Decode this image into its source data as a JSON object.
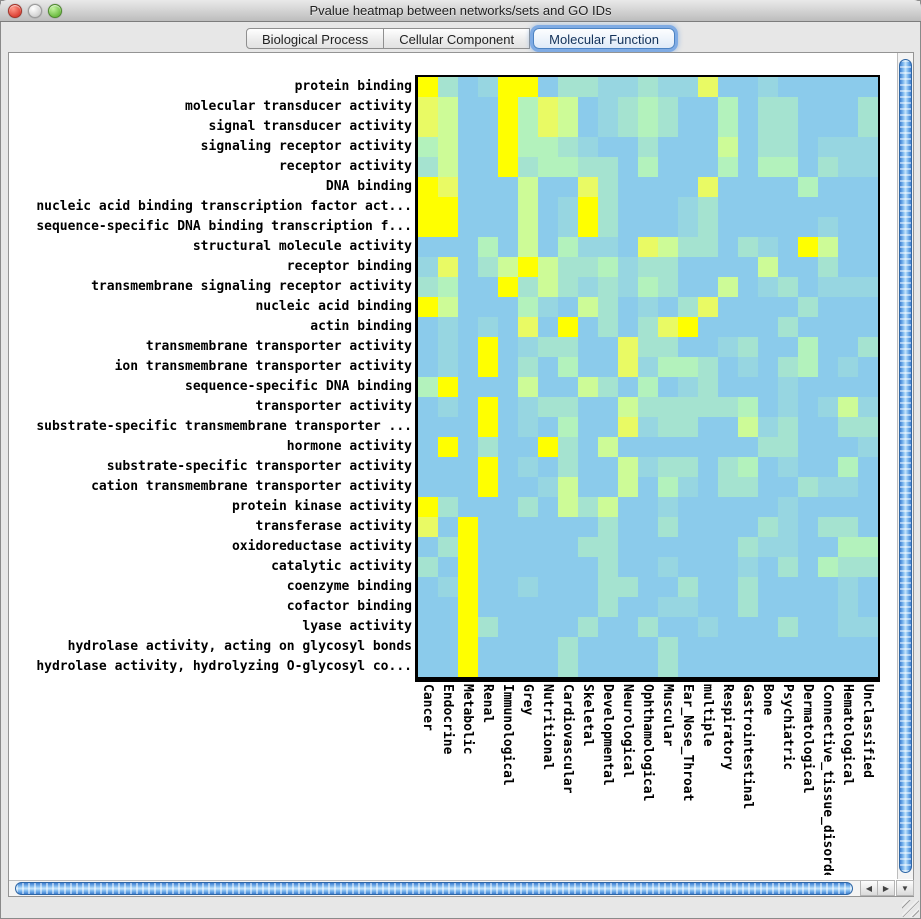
{
  "window": {
    "title": "Pvalue heatmap between networks/sets and GO IDs"
  },
  "tabs": [
    {
      "label": "Biological Process",
      "selected": false
    },
    {
      "label": "Cellular Component",
      "selected": false
    },
    {
      "label": "Molecular Function",
      "selected": true
    }
  ],
  "scrollbar_icons": {
    "left_arrow": "◀",
    "right_arrow": "▶",
    "down_arrow": "▼"
  },
  "chart_data": {
    "type": "heatmap",
    "title": "Pvalue heatmap between networks/sets and GO IDs",
    "rows": [
      "protein binding",
      "molecular transducer activity",
      "signal transducer activity",
      "signaling receptor activity",
      "receptor activity",
      "DNA binding",
      "nucleic acid binding transcription factor act...",
      "sequence-specific DNA binding transcription f...",
      "structural molecule activity",
      "receptor binding",
      "transmembrane signaling receptor activity",
      "nucleic acid binding",
      "actin binding",
      "transmembrane transporter activity",
      "ion transmembrane transporter activity",
      "sequence-specific DNA binding",
      "transporter activity",
      "substrate-specific transmembrane transporter ...",
      "hormone activity",
      "substrate-specific transporter activity",
      "cation transmembrane transporter activity",
      "protein kinase activity",
      "transferase activity",
      "oxidoreductase activity",
      "catalytic activity",
      "coenzyme binding",
      "cofactor binding",
      "lyase activity",
      "hydrolase activity, acting on glycosyl bonds",
      "hydrolase activity, hydrolyzing O-glycosyl co..."
    ],
    "columns": [
      "Cancer",
      "Endocrine",
      "Metabolic",
      "Renal",
      "Immunological",
      "Grey",
      "Nutritional",
      "Cardiovascular",
      "Skeletal",
      "Developmental",
      "Neurological",
      "Ophthamological",
      "Muscular",
      "Ear_Nose_Throat",
      "multiple",
      "Respiratory",
      "Gastrointestinal",
      "Bone",
      "Psychiatric",
      "Dermatological",
      "Connective_tissue_disorder",
      "Hematological",
      "Unclassified"
    ],
    "palette": [
      "#ffff00",
      "#e9fa64",
      "#cdfb97",
      "#b3f2bc",
      "#a5e3d0",
      "#97d6e1",
      "#8bcbeb"
    ],
    "values": [
      [
        0,
        4,
        6,
        5,
        0,
        0,
        6,
        4,
        4,
        5,
        5,
        4,
        5,
        5,
        1,
        6,
        6,
        5,
        6,
        6,
        6,
        6,
        6
      ],
      [
        1,
        2,
        6,
        6,
        0,
        3,
        1,
        2,
        6,
        5,
        4,
        3,
        4,
        6,
        6,
        3,
        6,
        4,
        4,
        6,
        6,
        6,
        4
      ],
      [
        1,
        2,
        6,
        6,
        0,
        3,
        1,
        2,
        6,
        5,
        4,
        3,
        4,
        6,
        6,
        3,
        6,
        4,
        4,
        6,
        6,
        6,
        4
      ],
      [
        3,
        2,
        6,
        6,
        0,
        3,
        3,
        4,
        5,
        6,
        6,
        4,
        6,
        6,
        6,
        2,
        6,
        4,
        4,
        6,
        5,
        5,
        5
      ],
      [
        4,
        2,
        6,
        6,
        0,
        4,
        3,
        3,
        4,
        4,
        6,
        3,
        6,
        6,
        6,
        3,
        6,
        3,
        3,
        6,
        4,
        5,
        5
      ],
      [
        0,
        1,
        6,
        6,
        6,
        2,
        6,
        6,
        1,
        4,
        6,
        6,
        6,
        6,
        1,
        6,
        6,
        6,
        6,
        3,
        6,
        6,
        6
      ],
      [
        0,
        0,
        6,
        6,
        6,
        2,
        6,
        5,
        0,
        4,
        6,
        6,
        6,
        5,
        4,
        6,
        6,
        6,
        6,
        6,
        6,
        6,
        6
      ],
      [
        0,
        0,
        6,
        6,
        6,
        2,
        6,
        5,
        0,
        4,
        6,
        6,
        6,
        5,
        4,
        6,
        6,
        6,
        6,
        6,
        5,
        6,
        6
      ],
      [
        6,
        6,
        6,
        3,
        6,
        2,
        6,
        3,
        5,
        5,
        6,
        1,
        2,
        4,
        4,
        6,
        4,
        5,
        6,
        0,
        2,
        6,
        6
      ],
      [
        5,
        1,
        6,
        4,
        2,
        0,
        2,
        4,
        4,
        3,
        5,
        4,
        4,
        6,
        6,
        6,
        6,
        2,
        6,
        6,
        4,
        6,
        6
      ],
      [
        4,
        3,
        6,
        6,
        0,
        4,
        2,
        4,
        5,
        4,
        5,
        3,
        4,
        6,
        6,
        2,
        6,
        5,
        4,
        6,
        5,
        5,
        5
      ],
      [
        0,
        2,
        6,
        6,
        6,
        3,
        5,
        6,
        2,
        4,
        6,
        5,
        6,
        4,
        1,
        6,
        6,
        6,
        6,
        4,
        6,
        6,
        6
      ],
      [
        6,
        5,
        6,
        5,
        6,
        1,
        6,
        0,
        6,
        4,
        6,
        4,
        1,
        0,
        6,
        6,
        6,
        6,
        4,
        6,
        6,
        6,
        6
      ],
      [
        6,
        5,
        6,
        0,
        6,
        5,
        4,
        4,
        6,
        6,
        1,
        4,
        4,
        6,
        6,
        5,
        4,
        6,
        6,
        3,
        6,
        6,
        4
      ],
      [
        6,
        5,
        6,
        0,
        6,
        4,
        6,
        3,
        6,
        6,
        1,
        5,
        3,
        3,
        4,
        6,
        5,
        6,
        4,
        3,
        6,
        5,
        6
      ],
      [
        3,
        0,
        6,
        6,
        6,
        2,
        6,
        6,
        2,
        4,
        6,
        3,
        6,
        5,
        4,
        6,
        6,
        6,
        5,
        6,
        6,
        6,
        6
      ],
      [
        6,
        5,
        6,
        0,
        6,
        5,
        4,
        4,
        6,
        6,
        2,
        4,
        4,
        4,
        4,
        4,
        3,
        6,
        5,
        6,
        5,
        2,
        5
      ],
      [
        6,
        6,
        6,
        0,
        6,
        5,
        6,
        3,
        6,
        6,
        1,
        5,
        4,
        4,
        6,
        6,
        2,
        5,
        4,
        6,
        6,
        4,
        4
      ],
      [
        6,
        0,
        6,
        4,
        6,
        6,
        0,
        4,
        6,
        2,
        6,
        6,
        6,
        6,
        6,
        6,
        6,
        4,
        4,
        6,
        6,
        6,
        5
      ],
      [
        6,
        6,
        6,
        0,
        6,
        5,
        6,
        4,
        6,
        6,
        2,
        5,
        4,
        4,
        6,
        4,
        3,
        6,
        5,
        6,
        6,
        3,
        6
      ],
      [
        6,
        6,
        6,
        0,
        6,
        6,
        5,
        2,
        6,
        6,
        2,
        6,
        3,
        5,
        6,
        4,
        4,
        6,
        6,
        4,
        5,
        5,
        6
      ],
      [
        0,
        4,
        6,
        6,
        6,
        4,
        6,
        2,
        4,
        2,
        6,
        6,
        5,
        6,
        6,
        6,
        6,
        6,
        5,
        6,
        6,
        6,
        6
      ],
      [
        1,
        6,
        0,
        6,
        6,
        6,
        6,
        6,
        6,
        4,
        6,
        6,
        4,
        6,
        6,
        6,
        6,
        4,
        5,
        6,
        4,
        4,
        6
      ],
      [
        6,
        4,
        0,
        6,
        6,
        6,
        6,
        6,
        4,
        4,
        6,
        6,
        6,
        6,
        6,
        6,
        4,
        5,
        5,
        6,
        6,
        3,
        3
      ],
      [
        4,
        6,
        0,
        6,
        6,
        6,
        6,
        6,
        6,
        4,
        6,
        6,
        5,
        6,
        6,
        6,
        5,
        6,
        4,
        6,
        3,
        4,
        4
      ],
      [
        6,
        5,
        0,
        6,
        6,
        5,
        6,
        6,
        6,
        4,
        4,
        6,
        6,
        4,
        6,
        6,
        4,
        6,
        6,
        6,
        6,
        5,
        6
      ],
      [
        6,
        6,
        0,
        6,
        6,
        6,
        6,
        6,
        6,
        4,
        6,
        6,
        5,
        5,
        6,
        6,
        4,
        6,
        6,
        6,
        6,
        5,
        6
      ],
      [
        6,
        6,
        0,
        4,
        6,
        6,
        6,
        6,
        4,
        6,
        6,
        4,
        6,
        6,
        5,
        6,
        6,
        6,
        4,
        6,
        6,
        5,
        5
      ],
      [
        6,
        6,
        0,
        6,
        6,
        6,
        6,
        4,
        6,
        6,
        6,
        6,
        4,
        6,
        6,
        6,
        6,
        6,
        6,
        6,
        6,
        6,
        6
      ],
      [
        6,
        6,
        0,
        6,
        6,
        6,
        6,
        4,
        6,
        6,
        6,
        6,
        4,
        6,
        6,
        6,
        6,
        6,
        6,
        6,
        6,
        6,
        6
      ]
    ],
    "cell_size_px": 20,
    "grid": false,
    "legend": "none shown"
  }
}
